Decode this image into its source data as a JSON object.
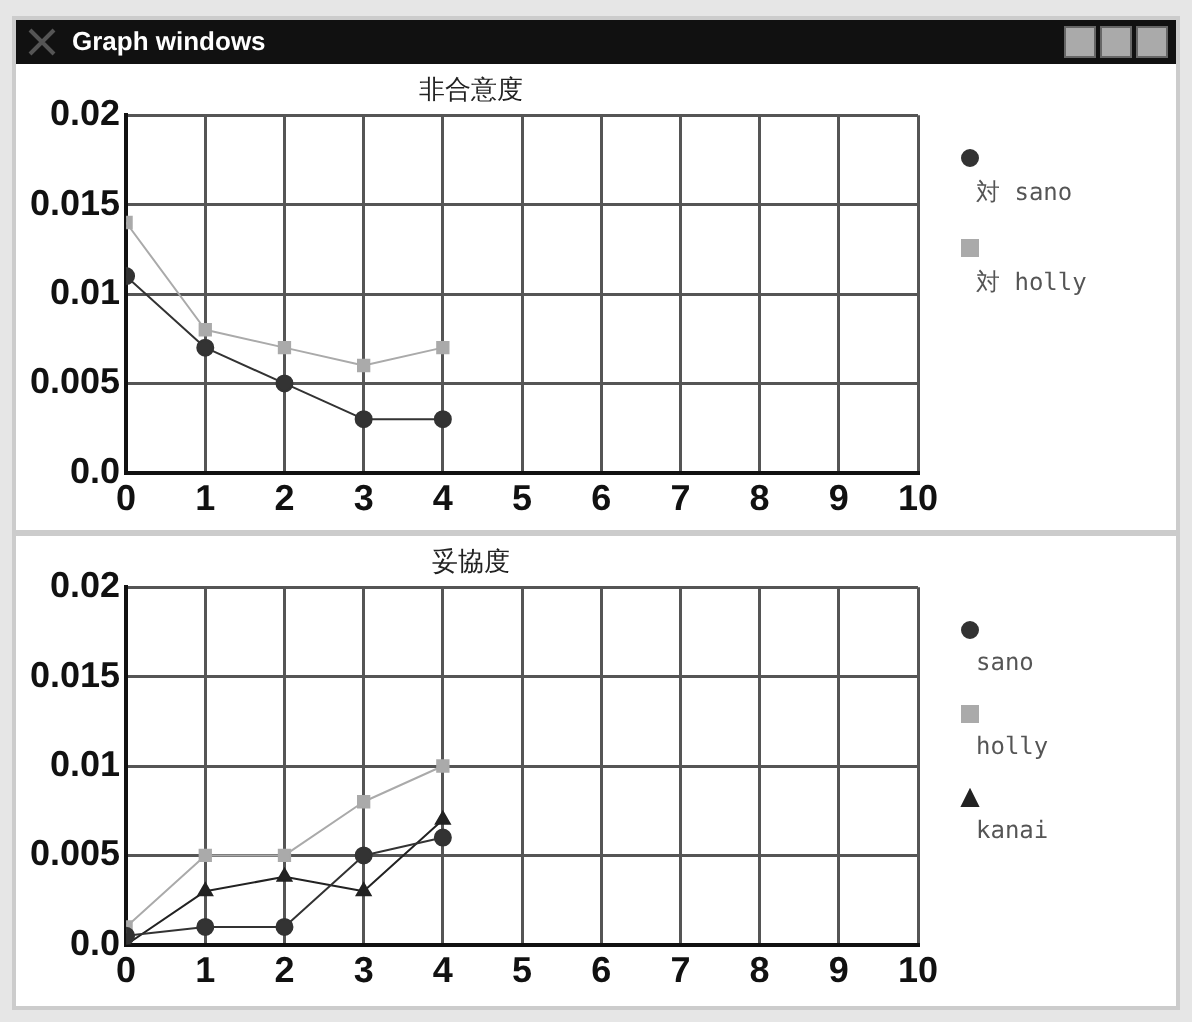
{
  "chart_data": [
    {
      "type": "line",
      "title": "非合意度",
      "annotations": [
        "Graph windows"
      ],
      "x": [
        0,
        1,
        2,
        3,
        4
      ],
      "xlim": [
        0,
        10
      ],
      "xticks": [
        0,
        1,
        2,
        3,
        4,
        5,
        6,
        7,
        8,
        9,
        10
      ],
      "ylim": [
        0,
        0.02
      ],
      "yticks": [
        {
          "value": 0,
          "label": "0.0"
        },
        0.005,
        0.01,
        0.015,
        0.02
      ],
      "grid": true,
      "legend": "right",
      "series": [
        {
          "name": "対 sano",
          "color": "#333333",
          "marker": "circle",
          "values": [
            0.011,
            0.007,
            0.005,
            0.003,
            0.003
          ]
        },
        {
          "name": "対 holly",
          "color": "#aaaaaa",
          "marker": "square",
          "values": [
            0.014,
            0.008,
            0.007,
            0.006,
            0.007
          ]
        }
      ]
    },
    {
      "type": "line",
      "title": "妥協度",
      "x": [
        0,
        1,
        2,
        3,
        4
      ],
      "xlim": [
        0,
        10
      ],
      "xticks": [
        0,
        1,
        2,
        3,
        4,
        5,
        6,
        7,
        8,
        9,
        10
      ],
      "ylim": [
        0,
        0.02
      ],
      "yticks": [
        {
          "value": 0,
          "label": "0.0"
        },
        0.005,
        0.01,
        0.015,
        0.02
      ],
      "grid": true,
      "legend": "right",
      "series": [
        {
          "name": "sano",
          "color": "#333333",
          "marker": "circle",
          "values": [
            0.0005,
            0.001,
            0.001,
            0.005,
            0.006
          ]
        },
        {
          "name": "holly",
          "color": "#aaaaaa",
          "marker": "square",
          "values": [
            0.001,
            0.005,
            0.005,
            0.008,
            0.01
          ]
        },
        {
          "name": "kanai",
          "color": "#222222",
          "marker": "triangle",
          "values": [
            0,
            0.003,
            0.0038,
            0.003,
            0.007
          ]
        }
      ]
    }
  ]
}
